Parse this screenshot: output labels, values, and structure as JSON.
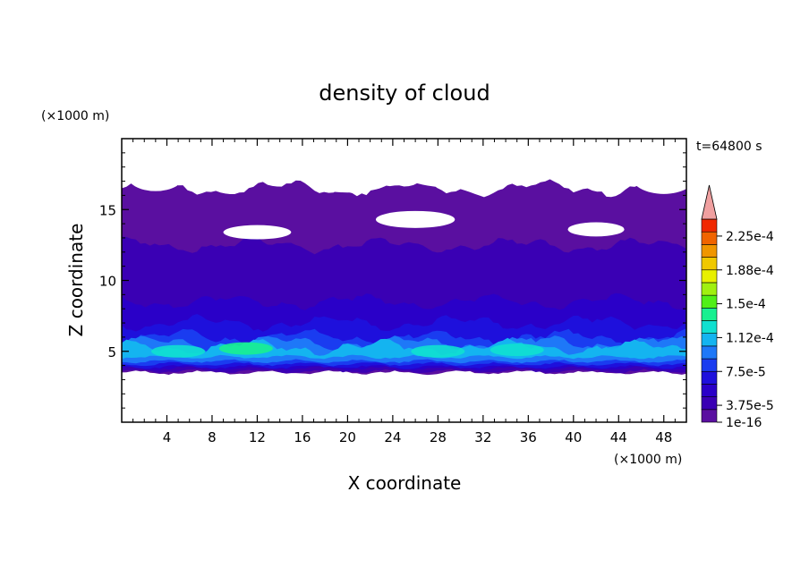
{
  "chart_data": {
    "type": "heatmap",
    "title": "density of cloud",
    "xlabel": "X coordinate",
    "ylabel": "Z coordinate",
    "x_unit": "(×1000 m)",
    "y_unit": "(×1000 m)",
    "time_label": "t=64800 s",
    "xlim": [
      0,
      50
    ],
    "ylim": [
      0,
      20
    ],
    "x_ticks": [
      4,
      8,
      12,
      16,
      20,
      24,
      28,
      32,
      36,
      40,
      44,
      48
    ],
    "y_ticks": [
      5,
      10,
      15
    ],
    "colorbar": {
      "ticks": [
        {
          "label": "2.25e-4",
          "value": 0.000225
        },
        {
          "label": "1.88e-4",
          "value": 0.000188
        },
        {
          "label": "1.5e-4",
          "value": 0.00015
        },
        {
          "label": "1.12e-4",
          "value": 0.000112
        },
        {
          "label": "7.5e-5",
          "value": 7.5e-05
        },
        {
          "label": "3.75e-5",
          "value": 3.75e-05
        },
        {
          "label": "1e-16",
          "value": 1e-16
        }
      ],
      "colors": [
        "#5a0fa0",
        "#3a00b4",
        "#2a00c8",
        "#1e10dc",
        "#1a3cf0",
        "#1e78f8",
        "#14b4f0",
        "#10e0d0",
        "#18f090",
        "#50f018",
        "#a0f010",
        "#e8f000",
        "#f0c800",
        "#f09600",
        "#f06400",
        "#f02800",
        "#f0a0a0"
      ],
      "extend": "max",
      "placement": "right"
    },
    "data_description": "cloud layer mostly between z=3.5 and z=16.5; densest (cyan/green) band near z=4.5-5.5",
    "bands": [
      {
        "zmin": 3.5,
        "zmax": 16.5,
        "level": 0
      },
      {
        "zmin": 3.6,
        "zmax": 12.5,
        "level": 1
      },
      {
        "zmin": 3.8,
        "zmax": 8.5,
        "level": 2
      },
      {
        "zmin": 3.9,
        "zmax": 7.0,
        "level": 3
      },
      {
        "zmin": 4.1,
        "zmax": 6.0,
        "level": 4
      },
      {
        "zmin": 4.3,
        "zmax": 5.6,
        "level": 5
      },
      {
        "zmin": 4.6,
        "zmax": 5.3,
        "level": 6
      }
    ],
    "hotspots": [
      {
        "x": 5,
        "z": 5.0,
        "level": 7
      },
      {
        "x": 11,
        "z": 5.2,
        "level": 8
      },
      {
        "x": 28,
        "z": 5.0,
        "level": 7
      },
      {
        "x": 35,
        "z": 5.1,
        "level": 7
      },
      {
        "x": 45,
        "z": 5.0,
        "level": 6
      }
    ],
    "grid": false
  }
}
